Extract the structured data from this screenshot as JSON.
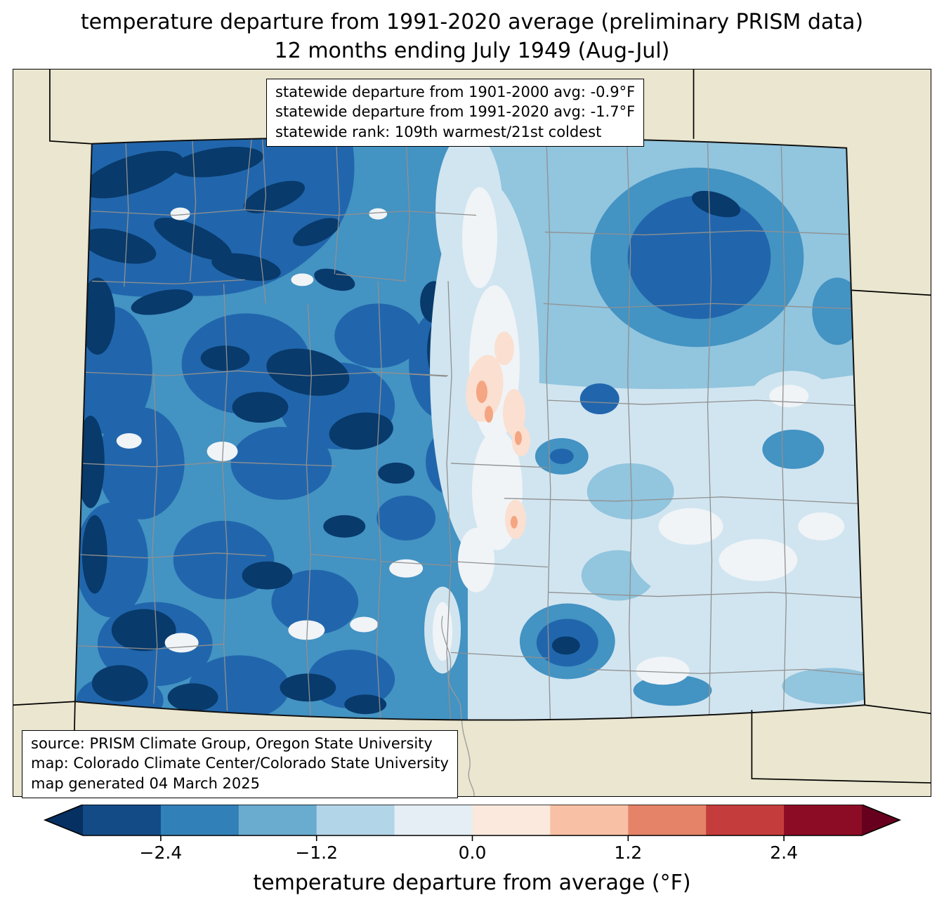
{
  "title": {
    "line1": "temperature departure from 1991-2020 average (preliminary PRISM data)",
    "line2": "12 months ending July 1949 (Aug-Jul)"
  },
  "stats_box": {
    "line1": "statewide departure from 1901-2000 avg: -0.9°F",
    "line2": "statewide departure from 1991-2020 avg: -1.7°F",
    "line3": "statewide rank: 109th warmest/21st coldest"
  },
  "source_box": {
    "line1": "source: PRISM Climate Group, Oregon State University",
    "line2": "map: Colorado Climate Center/Colorado State University",
    "line3": "map generated 04 March 2025"
  },
  "colorbar": {
    "label": "temperature departure from average (°F)",
    "ticks": [
      "−2.4",
      "−1.2",
      "0.0",
      "1.2",
      "2.4"
    ],
    "tick_values": [
      -2.4,
      -1.2,
      0.0,
      1.2,
      2.4
    ],
    "range": [
      -3.0,
      3.0
    ],
    "segment_colors": [
      "#134b87",
      "#3280b8",
      "#6aacd0",
      "#b2d5e7",
      "#e4eef4",
      "#fae9dc",
      "#f8c0a4",
      "#e58368",
      "#c43c3c",
      "#8d0c25"
    ],
    "under_color": "#053061",
    "over_color": "#67001f"
  },
  "map": {
    "region": "Colorado",
    "background_color": "#eae6cf",
    "county_line_color": "#909090",
    "state_line_color": "#000000"
  },
  "chart_data": {
    "type": "heatmap",
    "title": "temperature departure from 1991-2020 average (preliminary PRISM data), 12 months ending July 1949 (Aug-Jul)",
    "region": "Colorado",
    "statewide_departure_from_1901_2000_avg_F": -0.9,
    "statewide_departure_from_1991_2020_avg_F": -1.7,
    "statewide_rank": "109th warmest/21st coldest",
    "colorbar_label": "temperature departure from average (°F)",
    "colorbar_ticks": [
      -2.4,
      -1.2,
      0.0,
      1.2,
      2.4
    ],
    "colorbar_range": [
      -3.0,
      3.0
    ]
  }
}
